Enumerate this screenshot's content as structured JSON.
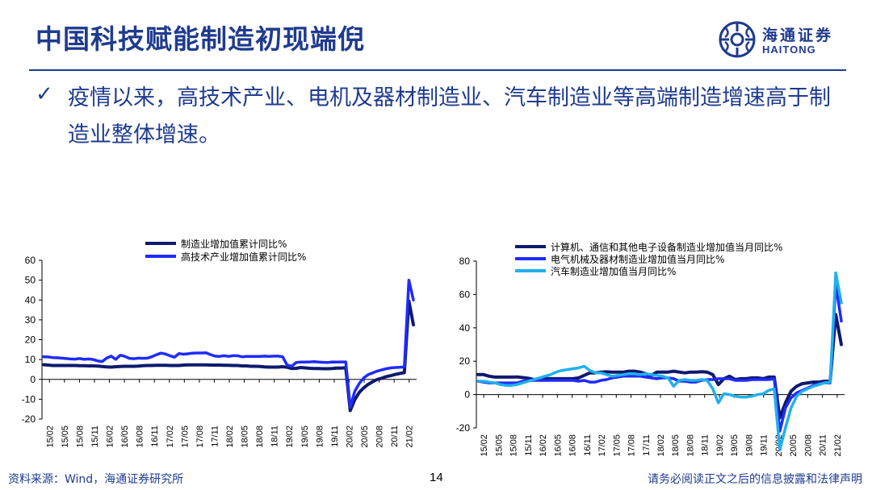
{
  "slide": {
    "title": "中国科技赋能制造初现端倪",
    "bullet": "疫情以来，高技术产业、电机及器材制造业、汽车制造业等高端制造增速高于制造业整体增速。",
    "check_icon": "✓",
    "logo_cn": "海通证券",
    "logo_en": "HAITONG",
    "source": "资料来源：Wind，海通证券研究所",
    "page_number": "14",
    "disclaimer": "请务必阅读正文之后的信息披露和法律声明"
  },
  "colors": {
    "title": "#1f3b8f",
    "series_dark": "#0d1a6e",
    "series_blue": "#1f2bff",
    "series_light": "#21b0ec"
  },
  "chart_data": [
    {
      "type": "line",
      "ylim": [
        -20,
        60
      ],
      "yticks": [
        -20,
        -10,
        0,
        10,
        20,
        30,
        40,
        50,
        60
      ],
      "x_tick_labels": [
        "15/02",
        "15/05",
        "15/08",
        "15/11",
        "16/02",
        "16/05",
        "16/08",
        "16/11",
        "17/02",
        "17/05",
        "17/08",
        "17/11",
        "18/02",
        "18/05",
        "18/08",
        "18/11",
        "19/02",
        "19/05",
        "19/08",
        "19/11",
        "20/02",
        "20/05",
        "20/08",
        "20/11",
        "21/02"
      ],
      "legend": "top-left",
      "series": [
        {
          "name": "制造业增加值累计同比%",
          "color": "#0d1a6e",
          "values": [
            7.4,
            7.2,
            7.0,
            7.0,
            7.0,
            7.0,
            7.0,
            7.0,
            6.9,
            6.9,
            6.8,
            6.8,
            6.7,
            6.5,
            6.3,
            6.2,
            6.4,
            6.5,
            6.6,
            6.6,
            6.6,
            6.7,
            6.9,
            7.0,
            7.0,
            7.1,
            7.1,
            7.1,
            7.0,
            7.0,
            7.0,
            7.2,
            7.3,
            7.3,
            7.3,
            7.3,
            7.3,
            7.2,
            7.2,
            7.2,
            7.1,
            7.1,
            7.0,
            7.0,
            6.8,
            6.8,
            6.6,
            6.6,
            6.5,
            6.3,
            6.2,
            6.2,
            6.2,
            6.4,
            6.1,
            5.5,
            5.6,
            6.0,
            5.8,
            5.6,
            5.5,
            5.5,
            5.4,
            5.4,
            5.5,
            5.7,
            5.7,
            5.9,
            -15.7,
            -10.2,
            -6.5,
            -4.2,
            -2.5,
            -1.1,
            0.0,
            0.6,
            1.4,
            1.9,
            2.5,
            3.0,
            3.4,
            39.5,
            27.5
          ]
        },
        {
          "name": "高技术产业增加值累计同比%",
          "color": "#1f2bff",
          "values": [
            11.4,
            11.3,
            11.0,
            10.9,
            10.7,
            10.5,
            10.3,
            10.2,
            10.5,
            10.1,
            10.3,
            10.0,
            9.3,
            9.0,
            10.8,
            11.7,
            10.1,
            12.2,
            11.6,
            10.6,
            10.4,
            10.7,
            10.6,
            10.7,
            11.4,
            12.4,
            13.2,
            12.8,
            11.9,
            11.2,
            13.0,
            12.7,
            12.9,
            13.2,
            13.3,
            13.3,
            13.4,
            12.5,
            11.7,
            11.6,
            11.9,
            11.6,
            11.9,
            11.9,
            11.4,
            11.6,
            11.6,
            11.6,
            11.6,
            11.7,
            11.6,
            11.7,
            11.7,
            11.4,
            7.2,
            6.6,
            8.5,
            8.7,
            8.7,
            8.8,
            8.9,
            8.7,
            8.6,
            8.5,
            8.8,
            8.7,
            8.8,
            8.8,
            -14.0,
            -6.0,
            -2.0,
            0.8,
            2.4,
            3.3,
            4.2,
            4.8,
            5.4,
            5.8,
            6.0,
            6.1,
            6.3,
            50.0,
            40.0
          ]
        }
      ]
    },
    {
      "type": "line",
      "ylim": [
        -20,
        80
      ],
      "yticks": [
        -20,
        0,
        20,
        40,
        60,
        80
      ],
      "x_tick_labels": [
        "15/02",
        "15/05",
        "15/08",
        "15/11",
        "16/02",
        "16/05",
        "16/08",
        "16/11",
        "17/02",
        "17/05",
        "17/08",
        "17/11",
        "18/02",
        "18/05",
        "18/08",
        "18/11",
        "19/02",
        "19/05",
        "19/08",
        "19/11",
        "20/02",
        "20/05",
        "20/08",
        "20/11",
        "21/02"
      ],
      "legend": "top-left",
      "series": [
        {
          "name": "计算机、通信和其他电子设备制造业增加值当月同比%",
          "color": "#0d1a6e",
          "values": [
            12.0,
            12.0,
            11.0,
            10.5,
            10.5,
            10.5,
            10.5,
            10.6,
            10.2,
            9.8,
            9.0,
            9.3,
            9.5,
            9.5,
            9.5,
            9.5,
            9.5,
            9.5,
            10.0,
            11.5,
            13.0,
            13.0,
            13.5,
            13.6,
            13.5,
            13.5,
            13.5,
            14.0,
            14.0,
            13.5,
            12.5,
            11.5,
            13.5,
            13.5,
            13.5,
            14.0,
            13.5,
            13.0,
            13.5,
            13.5,
            13.7,
            13.5,
            12.0,
            6.0,
            9.5,
            11.0,
            9.0,
            9.5,
            9.5,
            10.0,
            10.0,
            9.5,
            10.5,
            10.5,
            -14.0,
            -5.0,
            2.0,
            5.0,
            6.5,
            7.0,
            7.5,
            7.5,
            8.0,
            8.0,
            48.0,
            30.0
          ]
        },
        {
          "name": "电气机械及器材制造业增加值当月同比%",
          "color": "#1f2bff",
          "values": [
            8.0,
            7.5,
            7.0,
            7.0,
            7.0,
            7.0,
            7.0,
            7.0,
            8.0,
            8.5,
            8.5,
            8.5,
            8.5,
            8.5,
            8.5,
            8.5,
            8.5,
            8.5,
            8.0,
            8.5,
            7.5,
            7.5,
            8.5,
            9.0,
            10.0,
            10.5,
            11.0,
            11.0,
            11.0,
            11.0,
            10.5,
            10.0,
            9.5,
            10.0,
            10.0,
            9.5,
            8.0,
            8.0,
            7.5,
            7.5,
            8.5,
            9.0,
            9.0,
            9.5,
            9.5,
            9.5,
            8.5,
            8.5,
            8.5,
            9.0,
            9.0,
            9.0,
            9.0,
            9.5,
            -22.0,
            -8.0,
            -2.0,
            1.0,
            2.5,
            4.0,
            5.5,
            6.5,
            7.0,
            7.0,
            66.0,
            44.0
          ]
        },
        {
          "name": "汽车制造业增加值当月同比%",
          "color": "#21b0ec",
          "values": [
            8.0,
            8.0,
            7.5,
            7.0,
            6.0,
            5.5,
            5.5,
            6.0,
            7.0,
            8.0,
            9.0,
            10.0,
            11.0,
            12.0,
            13.5,
            14.5,
            15.0,
            15.5,
            16.0,
            17.0,
            14.5,
            13.0,
            13.0,
            12.0,
            11.0,
            11.5,
            12.0,
            12.5,
            12.5,
            12.0,
            12.5,
            12.0,
            11.5,
            11.0,
            10.0,
            5.0,
            8.5,
            9.0,
            8.5,
            8.5,
            9.0,
            8.5,
            3.5,
            -5.0,
            0.5,
            0.0,
            -1.0,
            -1.5,
            -1.5,
            -1.0,
            0.0,
            0.5,
            2.5,
            3.5,
            -33.0,
            -20.0,
            -8.0,
            -1.0,
            2.0,
            3.5,
            5.0,
            6.0,
            7.0,
            7.5,
            73.0,
            55.0
          ]
        }
      ]
    }
  ]
}
